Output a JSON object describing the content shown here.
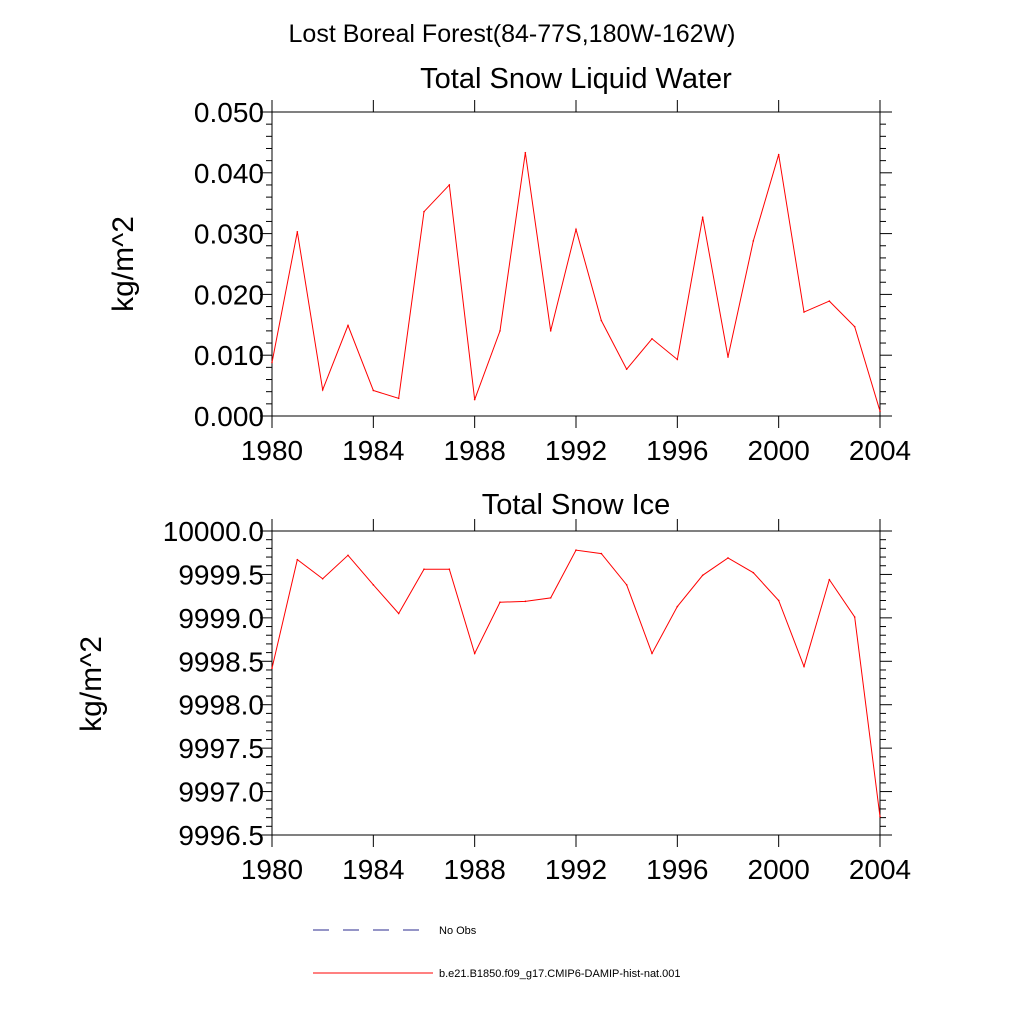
{
  "figure_title": "Lost Boreal Forest(84-77S,180W-162W)",
  "colors": {
    "model": "#ff0000",
    "obs": "#2b2b8f",
    "axis": "#000000"
  },
  "legend": {
    "obs_label": "No Obs",
    "model_label": "b.e21.B1850.f09_g17.CMIP6-DAMIP-hist-nat.001"
  },
  "chart_data": [
    {
      "type": "line",
      "title": "Total Snow Liquid Water",
      "xlabel": "",
      "ylabel": "kg/m^2",
      "xlim": [
        1980,
        2004
      ],
      "ylim": [
        0.0,
        0.05
      ],
      "x_ticks": [
        "1980",
        "1984",
        "1988",
        "1992",
        "1996",
        "2000",
        "2004"
      ],
      "y_ticks": [
        "0.000",
        "0.010",
        "0.020",
        "0.030",
        "0.040",
        "0.050"
      ],
      "x": [
        1980,
        1981,
        1982,
        1983,
        1984,
        1985,
        1986,
        1987,
        1988,
        1989,
        1990,
        1991,
        1992,
        1993,
        1994,
        1995,
        1996,
        1997,
        1998,
        1999,
        2000,
        2001,
        2002,
        2003,
        2004
      ],
      "series": [
        {
          "name": "b.e21.B1850.f09_g17.CMIP6-DAMIP-hist-nat.001",
          "color": "#ff0000",
          "values": [
            0.0088,
            0.0303,
            0.0043,
            0.0149,
            0.0042,
            0.0029,
            0.0336,
            0.038,
            0.0027,
            0.014,
            0.0433,
            0.014,
            0.0307,
            0.0157,
            0.0077,
            0.0127,
            0.0093,
            0.0327,
            0.0097,
            0.0288,
            0.043,
            0.0171,
            0.0189,
            0.0147,
            0.0008
          ]
        }
      ],
      "grid": false
    },
    {
      "type": "line",
      "title": "Total Snow Ice",
      "xlabel": "",
      "ylabel": "kg/m^2",
      "xlim": [
        1980,
        2004
      ],
      "ylim": [
        9996.5,
        10000.0
      ],
      "x_ticks": [
        "1980",
        "1984",
        "1988",
        "1992",
        "1996",
        "2000",
        "2004"
      ],
      "y_ticks": [
        "9996.5",
        "9997.0",
        "9997.5",
        "9998.0",
        "9998.5",
        "9999.0",
        "9999.5",
        "10000.0"
      ],
      "x": [
        1980,
        1981,
        1982,
        1983,
        1984,
        1985,
        1986,
        1987,
        1988,
        1989,
        1990,
        1991,
        1992,
        1993,
        1994,
        1995,
        1996,
        1997,
        1998,
        1999,
        2000,
        2001,
        2002,
        2003,
        2004
      ],
      "series": [
        {
          "name": "b.e21.B1850.f09_g17.CMIP6-DAMIP-hist-nat.001",
          "color": "#ff0000",
          "values": [
            9998.42,
            9999.67,
            9999.45,
            9999.72,
            9999.38,
            9999.05,
            9999.56,
            9999.56,
            9998.59,
            9999.18,
            9999.19,
            9999.23,
            9999.78,
            9999.74,
            9999.38,
            9998.59,
            9999.13,
            9999.49,
            9999.69,
            9999.52,
            9999.2,
            9998.44,
            9999.44,
            9999.01,
            9996.71
          ]
        }
      ],
      "grid": false
    }
  ]
}
